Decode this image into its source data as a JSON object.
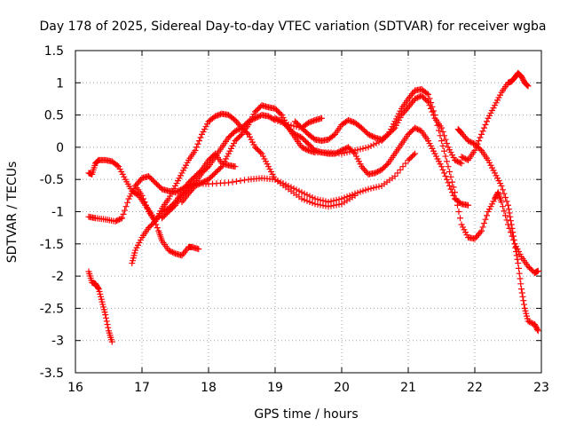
{
  "chart_data": {
    "type": "scatter",
    "title": "Day 178 of 2025, Sidereal Day-to-day VTEC variation (SDTVAR) for receiver wgba",
    "xlabel": "GPS time / hours",
    "ylabel": "SDTVAR / TECUs",
    "xlim": [
      16,
      23
    ],
    "ylim": [
      -3.5,
      1.5
    ],
    "xticks": [
      "16",
      "17",
      "18",
      "19",
      "20",
      "21",
      "22",
      "23"
    ],
    "yticks": [
      "1.5",
      "1",
      "0.5",
      "0",
      "-0.5",
      "-1",
      "-1.5",
      "-2",
      "-2.5",
      "-3",
      "-3.5"
    ],
    "grid": true,
    "marker": "+",
    "color": "#ff0000",
    "series": [
      {
        "name": "s1",
        "points": [
          [
            16.2,
            -1.93
          ],
          [
            16.25,
            -2.1
          ],
          [
            16.3,
            -2.12
          ],
          [
            16.35,
            -2.2
          ],
          [
            16.4,
            -2.4
          ],
          [
            16.45,
            -2.6
          ],
          [
            16.5,
            -2.85
          ],
          [
            16.55,
            -3.02
          ]
        ]
      },
      {
        "name": "s2",
        "points": [
          [
            16.2,
            -0.4
          ],
          [
            16.25,
            -0.42
          ],
          [
            16.3,
            -0.25
          ],
          [
            16.35,
            -0.2
          ],
          [
            16.45,
            -0.2
          ],
          [
            16.55,
            -0.22
          ],
          [
            16.65,
            -0.3
          ],
          [
            16.75,
            -0.5
          ],
          [
            16.85,
            -0.68
          ],
          [
            16.95,
            -0.75
          ],
          [
            17.05,
            -0.9
          ],
          [
            17.15,
            -1.05
          ],
          [
            17.25,
            -1.3
          ],
          [
            17.3,
            -1.45
          ],
          [
            17.4,
            -1.6
          ],
          [
            17.5,
            -1.65
          ],
          [
            17.6,
            -1.68
          ],
          [
            17.7,
            -1.55
          ],
          [
            17.75,
            -1.55
          ],
          [
            17.85,
            -1.58
          ]
        ]
      },
      {
        "name": "s3",
        "points": [
          [
            16.2,
            -1.08
          ],
          [
            16.3,
            -1.1
          ],
          [
            16.45,
            -1.12
          ],
          [
            16.6,
            -1.15
          ],
          [
            16.7,
            -1.1
          ],
          [
            16.8,
            -0.8
          ],
          [
            16.9,
            -0.6
          ],
          [
            17.0,
            -0.48
          ],
          [
            17.1,
            -0.45
          ],
          [
            17.2,
            -0.55
          ],
          [
            17.3,
            -0.65
          ],
          [
            17.4,
            -0.68
          ],
          [
            17.5,
            -0.7
          ],
          [
            17.6,
            -0.65
          ],
          [
            17.7,
            -0.58
          ],
          [
            17.8,
            -0.56
          ],
          [
            18.0,
            -0.57
          ],
          [
            18.3,
            -0.55
          ],
          [
            18.6,
            -0.5
          ],
          [
            18.8,
            -0.48
          ],
          [
            19.0,
            -0.5
          ],
          [
            19.2,
            -0.6
          ],
          [
            19.4,
            -0.7
          ],
          [
            19.6,
            -0.8
          ],
          [
            19.8,
            -0.85
          ],
          [
            20.0,
            -0.8
          ],
          [
            20.2,
            -0.72
          ],
          [
            20.4,
            -0.65
          ],
          [
            20.6,
            -0.6
          ],
          [
            20.8,
            -0.45
          ],
          [
            21.0,
            -0.2
          ],
          [
            21.1,
            -0.1
          ]
        ]
      },
      {
        "name": "s4",
        "points": [
          [
            16.85,
            -1.8
          ],
          [
            16.9,
            -1.6
          ],
          [
            17.0,
            -1.4
          ],
          [
            17.1,
            -1.25
          ],
          [
            17.2,
            -1.15
          ],
          [
            17.3,
            -1.0
          ],
          [
            17.4,
            -0.95
          ],
          [
            17.5,
            -0.85
          ],
          [
            17.6,
            -0.7
          ],
          [
            17.7,
            -0.55
          ],
          [
            17.8,
            -0.45
          ],
          [
            17.9,
            -0.35
          ],
          [
            18.0,
            -0.2
          ],
          [
            18.1,
            -0.1
          ],
          [
            18.2,
            -0.25
          ],
          [
            18.3,
            -0.28
          ],
          [
            18.4,
            -0.3
          ]
        ]
      },
      {
        "name": "s5",
        "points": [
          [
            16.9,
            -0.6
          ],
          [
            17.0,
            -0.75
          ],
          [
            17.1,
            -1.0
          ],
          [
            17.2,
            -1.15
          ],
          [
            17.3,
            -0.95
          ],
          [
            17.4,
            -0.8
          ],
          [
            17.5,
            -0.6
          ],
          [
            17.6,
            -0.4
          ],
          [
            17.7,
            -0.2
          ],
          [
            17.8,
            -0.05
          ],
          [
            17.9,
            0.2
          ],
          [
            18.0,
            0.4
          ],
          [
            18.1,
            0.48
          ],
          [
            18.2,
            0.52
          ],
          [
            18.3,
            0.5
          ],
          [
            18.4,
            0.42
          ],
          [
            18.5,
            0.3
          ],
          [
            18.6,
            0.2
          ],
          [
            18.7,
            0.0
          ],
          [
            18.8,
            -0.1
          ],
          [
            18.9,
            -0.3
          ],
          [
            19.0,
            -0.5
          ],
          [
            19.2,
            -0.65
          ],
          [
            19.4,
            -0.8
          ],
          [
            19.6,
            -0.88
          ],
          [
            19.8,
            -0.92
          ],
          [
            20.0,
            -0.88
          ],
          [
            20.2,
            -0.75
          ]
        ]
      },
      {
        "name": "s6",
        "points": [
          [
            17.3,
            -1.1
          ],
          [
            17.4,
            -1.0
          ],
          [
            17.5,
            -0.9
          ],
          [
            17.6,
            -0.75
          ],
          [
            17.7,
            -0.65
          ],
          [
            17.8,
            -0.55
          ],
          [
            17.9,
            -0.4
          ],
          [
            18.0,
            -0.3
          ],
          [
            18.1,
            -0.15
          ],
          [
            18.2,
            0.0
          ],
          [
            18.3,
            0.15
          ],
          [
            18.4,
            0.25
          ],
          [
            18.5,
            0.3
          ],
          [
            18.6,
            0.4
          ],
          [
            18.7,
            0.45
          ],
          [
            18.8,
            0.5
          ],
          [
            18.9,
            0.48
          ],
          [
            19.0,
            0.42
          ],
          [
            19.2,
            0.35
          ],
          [
            19.4,
            0.3
          ],
          [
            19.5,
            0.38
          ],
          [
            19.6,
            0.42
          ],
          [
            19.7,
            0.45
          ]
        ]
      },
      {
        "name": "s7",
        "points": [
          [
            17.6,
            -0.85
          ],
          [
            17.7,
            -0.72
          ],
          [
            17.8,
            -0.6
          ],
          [
            17.9,
            -0.55
          ],
          [
            18.0,
            -0.5
          ],
          [
            18.1,
            -0.4
          ],
          [
            18.2,
            -0.3
          ],
          [
            18.3,
            -0.1
          ],
          [
            18.4,
            0.1
          ],
          [
            18.5,
            0.2
          ],
          [
            18.6,
            0.35
          ],
          [
            18.7,
            0.55
          ],
          [
            18.8,
            0.65
          ],
          [
            18.9,
            0.62
          ],
          [
            19.0,
            0.6
          ],
          [
            19.1,
            0.5
          ],
          [
            19.2,
            0.3
          ],
          [
            19.3,
            0.15
          ],
          [
            19.4,
            0.0
          ],
          [
            19.5,
            -0.05
          ],
          [
            19.6,
            -0.08
          ],
          [
            19.8,
            -0.08
          ],
          [
            20.0,
            -0.1
          ],
          [
            20.2,
            -0.05
          ],
          [
            20.4,
            0.0
          ],
          [
            20.6,
            0.1
          ],
          [
            20.7,
            0.2
          ],
          [
            20.8,
            0.3
          ],
          [
            20.9,
            0.5
          ],
          [
            21.0,
            0.62
          ],
          [
            21.1,
            0.75
          ],
          [
            21.2,
            0.8
          ],
          [
            21.3,
            0.7
          ],
          [
            21.4,
            0.45
          ],
          [
            21.5,
            0.3
          ],
          [
            21.6,
            0.0
          ],
          [
            21.7,
            -0.2
          ],
          [
            21.8,
            -0.25
          ]
        ]
      },
      {
        "name": "s8",
        "points": [
          [
            19.0,
            0.45
          ],
          [
            19.1,
            0.4
          ],
          [
            19.2,
            0.3
          ],
          [
            19.3,
            0.2
          ],
          [
            19.4,
            0.15
          ],
          [
            19.5,
            0.05
          ],
          [
            19.6,
            -0.05
          ],
          [
            19.7,
            -0.08
          ],
          [
            19.8,
            -0.1
          ],
          [
            19.9,
            -0.1
          ],
          [
            20.0,
            -0.05
          ],
          [
            20.1,
            0.0
          ],
          [
            20.2,
            -0.1
          ],
          [
            20.3,
            -0.3
          ],
          [
            20.4,
            -0.42
          ],
          [
            20.5,
            -0.4
          ],
          [
            20.6,
            -0.35
          ],
          [
            20.7,
            -0.25
          ],
          [
            20.8,
            -0.1
          ],
          [
            20.9,
            0.05
          ],
          [
            21.0,
            0.2
          ],
          [
            21.1,
            0.3
          ],
          [
            21.2,
            0.25
          ],
          [
            21.3,
            0.1
          ],
          [
            21.4,
            -0.1
          ],
          [
            21.5,
            -0.3
          ],
          [
            21.6,
            -0.55
          ],
          [
            21.7,
            -0.8
          ],
          [
            21.8,
            -0.88
          ],
          [
            21.9,
            -0.9
          ]
        ]
      },
      {
        "name": "s9",
        "points": [
          [
            19.3,
            0.4
          ],
          [
            19.4,
            0.3
          ],
          [
            19.5,
            0.2
          ],
          [
            19.6,
            0.12
          ],
          [
            19.7,
            0.1
          ],
          [
            19.8,
            0.12
          ],
          [
            19.9,
            0.2
          ],
          [
            20.0,
            0.35
          ],
          [
            20.1,
            0.42
          ],
          [
            20.2,
            0.38
          ],
          [
            20.3,
            0.3
          ],
          [
            20.4,
            0.2
          ],
          [
            20.5,
            0.15
          ],
          [
            20.6,
            0.12
          ],
          [
            20.7,
            0.2
          ],
          [
            20.8,
            0.4
          ],
          [
            20.9,
            0.6
          ],
          [
            21.0,
            0.75
          ],
          [
            21.1,
            0.88
          ],
          [
            21.2,
            0.9
          ],
          [
            21.3,
            0.82
          ],
          [
            21.4,
            0.5
          ],
          [
            21.5,
            0.1
          ],
          [
            21.6,
            -0.3
          ],
          [
            21.7,
            -0.7
          ],
          [
            21.8,
            -1.2
          ],
          [
            21.9,
            -1.4
          ],
          [
            22.0,
            -1.42
          ],
          [
            22.1,
            -1.3
          ],
          [
            22.2,
            -1.0
          ],
          [
            22.3,
            -0.8
          ],
          [
            22.35,
            -0.7
          ],
          [
            22.4,
            -0.85
          ],
          [
            22.5,
            -1.2
          ],
          [
            22.6,
            -1.5
          ],
          [
            22.7,
            -1.7
          ],
          [
            22.8,
            -1.85
          ],
          [
            22.9,
            -1.95
          ],
          [
            22.95,
            -1.92
          ]
        ]
      },
      {
        "name": "s10",
        "points": [
          [
            21.75,
            0.28
          ],
          [
            21.8,
            0.22
          ],
          [
            21.9,
            0.1
          ],
          [
            22.0,
            0.05
          ],
          [
            22.1,
            -0.05
          ],
          [
            22.2,
            -0.2
          ],
          [
            22.3,
            -0.4
          ],
          [
            22.4,
            -0.6
          ],
          [
            22.5,
            -0.9
          ],
          [
            22.55,
            -1.2
          ],
          [
            22.6,
            -1.5
          ],
          [
            22.65,
            -1.8
          ],
          [
            22.7,
            -2.2
          ],
          [
            22.75,
            -2.5
          ],
          [
            22.8,
            -2.7
          ],
          [
            22.9,
            -2.75
          ],
          [
            22.95,
            -2.85
          ]
        ]
      },
      {
        "name": "s11",
        "points": [
          [
            21.8,
            -0.15
          ],
          [
            21.9,
            -0.2
          ],
          [
            22.0,
            -0.05
          ],
          [
            22.1,
            0.2
          ],
          [
            22.2,
            0.45
          ],
          [
            22.3,
            0.65
          ],
          [
            22.4,
            0.85
          ],
          [
            22.5,
            1.0
          ],
          [
            22.55,
            1.02
          ],
          [
            22.6,
            1.08
          ],
          [
            22.65,
            1.15
          ],
          [
            22.7,
            1.1
          ],
          [
            22.75,
            1.0
          ],
          [
            22.8,
            0.95
          ]
        ]
      }
    ]
  }
}
